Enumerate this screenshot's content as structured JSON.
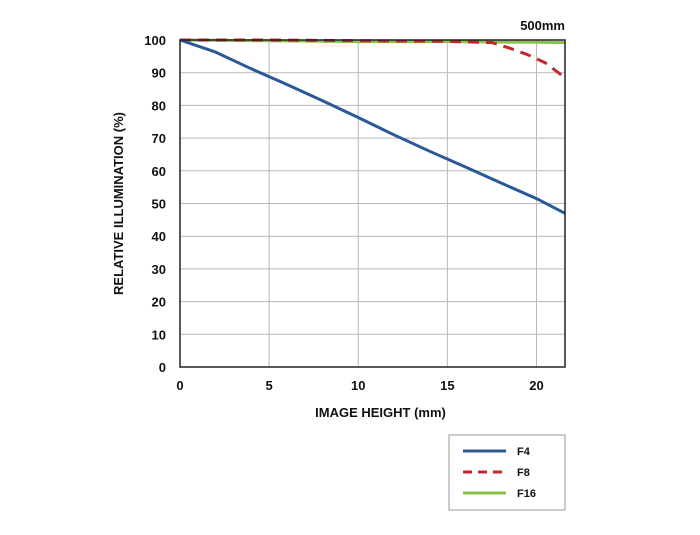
{
  "chart_data": {
    "type": "line",
    "title": "500mm",
    "xlabel": "IMAGE HEIGHT (mm)",
    "ylabel": "RELATIVE ILLUMINATION (%)",
    "xlim": [
      0,
      21.6
    ],
    "ylim": [
      0,
      100
    ],
    "xticks": [
      0,
      5,
      10,
      15,
      20
    ],
    "yticks": [
      0,
      10,
      20,
      30,
      40,
      50,
      60,
      70,
      80,
      90,
      100
    ],
    "grid": true,
    "legend_position": "bottom-right",
    "series": [
      {
        "name": "F4",
        "color": "#2b5896",
        "dash": "solid",
        "x": [
          0,
          2,
          4,
          6,
          8,
          10,
          12,
          14,
          16,
          18,
          20,
          21.6
        ],
        "y": [
          100,
          96.3,
          91.2,
          86.4,
          81.4,
          76.3,
          71.0,
          66.0,
          61.2,
          56.3,
          51.5,
          47.0
        ]
      },
      {
        "name": "F8",
        "color": "#c0282d",
        "dash": "dashed",
        "x": [
          0,
          5,
          10,
          15,
          17.5,
          18.5,
          19.5,
          20.5,
          21.6
        ],
        "y": [
          100,
          100,
          99.8,
          99.6,
          99.2,
          97.5,
          95.5,
          93.0,
          88.5
        ]
      },
      {
        "name": "F16",
        "color": "#8dc04e",
        "dash": "solid",
        "x": [
          0,
          5,
          10,
          15,
          20,
          21.6
        ],
        "y": [
          100,
          99.8,
          99.5,
          99.5,
          99.3,
          99.2
        ]
      }
    ]
  }
}
